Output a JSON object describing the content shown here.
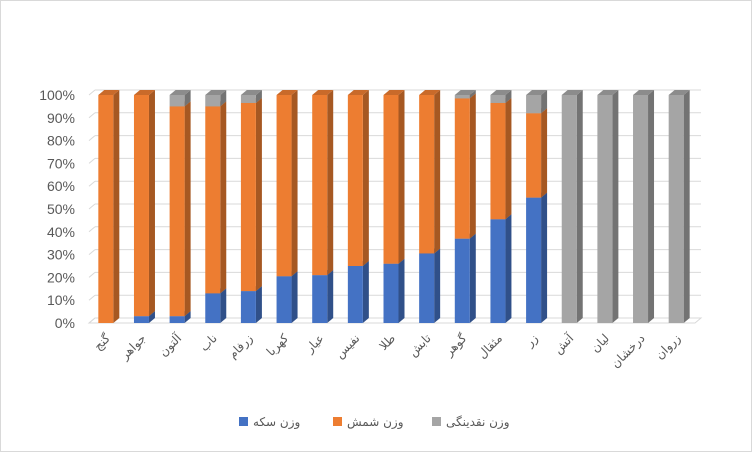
{
  "chart_data": {
    "type": "bar",
    "stacked": "percent",
    "three_d": true,
    "categories": [
      "گنج",
      "جواهر",
      "آلتون",
      "ناب",
      "زرفام",
      "کهربا",
      "عیار",
      "نفیس",
      "طلا",
      "تابش",
      "گوهر",
      "مثقال",
      "زر",
      "آتش",
      "لیان",
      "درخشان",
      "زروان"
    ],
    "series": [
      {
        "name": "وزن سکه",
        "color": "#4472c4",
        "values": [
          0,
          3,
          3,
          13,
          14,
          20.5,
          21,
          25,
          26,
          30.5,
          37,
          45.5,
          55,
          0,
          0,
          0,
          0
        ]
      },
      {
        "name": "وزن شمش",
        "color": "#ed7d31",
        "values": [
          100,
          97,
          92,
          82,
          82.5,
          79.5,
          79,
          75,
          74,
          69.5,
          61.5,
          51,
          37,
          0,
          0,
          0,
          0
        ]
      },
      {
        "name": "وزن نقدینگی",
        "color": "#a5a5a5",
        "values": [
          0,
          0,
          5,
          5,
          3.5,
          0,
          0,
          0,
          0,
          0,
          1.5,
          3.5,
          8,
          100,
          100,
          100,
          100
        ]
      }
    ],
    "y_ticks": [
      "0%",
      "10%",
      "20%",
      "30%",
      "40%",
      "50%",
      "60%",
      "70%",
      "80%",
      "90%",
      "100%"
    ],
    "ylim": [
      0,
      100
    ],
    "grid": true,
    "legend_position": "bottom"
  }
}
